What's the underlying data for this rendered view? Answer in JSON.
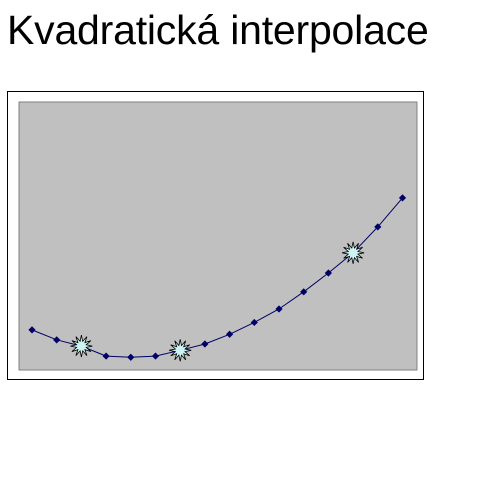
{
  "slide": {
    "title": "Kvadratická interpolace"
  },
  "chart_data": {
    "type": "scatter",
    "title": "",
    "xlabel": "",
    "ylabel": "",
    "grid": false,
    "legend": "none",
    "xlim": [
      0,
      15.5
    ],
    "ylim": [
      0,
      8.5
    ],
    "colors": {
      "plot_area": "#c0c0c0",
      "line": "#000066",
      "marker": "#000066",
      "highlight_fill": "#cdf3f3",
      "highlight_stroke": "#000000"
    },
    "series": [
      {
        "x": [
          0.5,
          1.5,
          2.5,
          3.5,
          4.5,
          5.5,
          6.5,
          7.5,
          8.5,
          9.5,
          10.5,
          11.5,
          12.5,
          13.5,
          14.5,
          15.5
        ],
        "y": [
          1.73,
          1.3,
          1.03,
          0.6,
          0.55,
          0.6,
          0.85,
          1.12,
          1.54,
          2.05,
          2.63,
          3.37,
          4.18,
          5.05,
          6.17,
          7.42
        ]
      }
    ],
    "highlighted_points": [
      {
        "x": 2.5,
        "y": 1.03
      },
      {
        "x": 6.5,
        "y": 0.85
      },
      {
        "x": 13.5,
        "y": 5.05
      }
    ]
  }
}
